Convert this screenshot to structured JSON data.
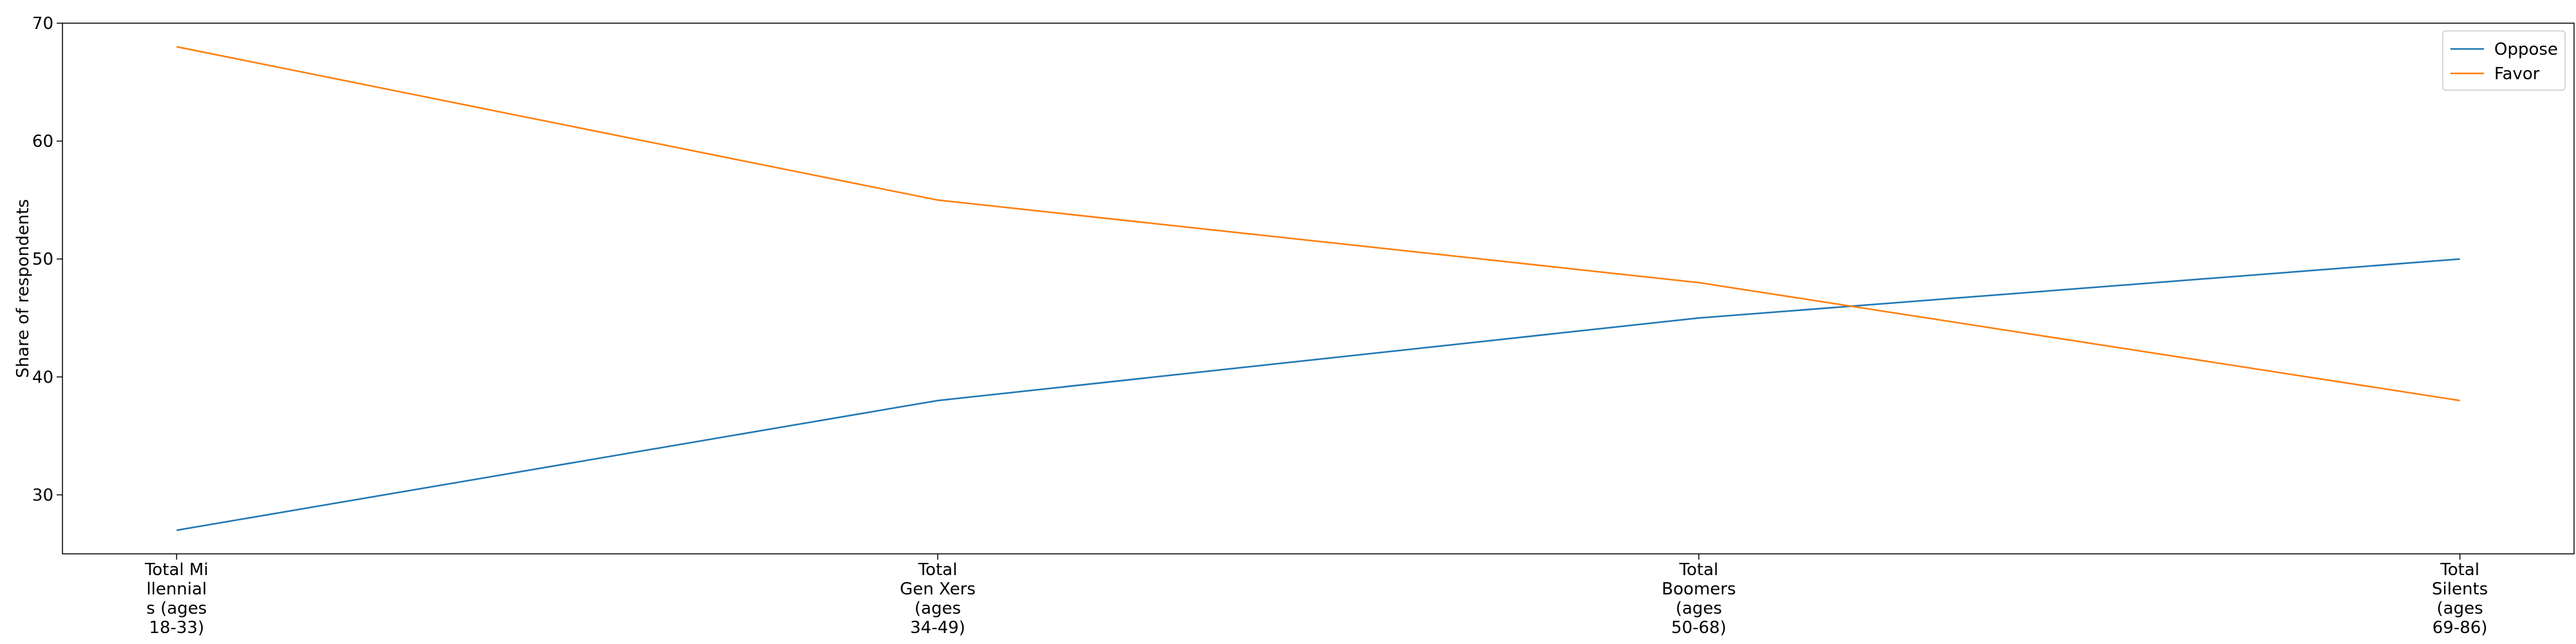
{
  "chart_data": {
    "type": "line",
    "categories": [
      "Total Millennials (ages 18-33)",
      "Total Gen Xers (ages 34-49)",
      "Total Boomers (ages 50-68)",
      "Total Silents (ages 69-86)"
    ],
    "category_label_lines": [
      [
        "Total Mi",
        "llennial",
        "s (ages",
        "18-33)"
      ],
      [
        "Total",
        "Gen Xers",
        "(ages",
        "34-49)"
      ],
      [
        "Total",
        "Boomers",
        "(ages",
        "50-68)"
      ],
      [
        "Total",
        "Silents",
        "(ages",
        "69-86)"
      ]
    ],
    "series": [
      {
        "name": "Oppose",
        "values": [
          27,
          38,
          45,
          50
        ],
        "color": "#1f77b4"
      },
      {
        "name": "Favor",
        "values": [
          68,
          55,
          48,
          38
        ],
        "color": "#ff7f0e"
      }
    ],
    "xlabel": "",
    "ylabel": "Share of respondents",
    "ylim": [
      25,
      70
    ],
    "yticks": [
      30,
      40,
      50,
      60,
      70
    ],
    "grid": false,
    "legend_position": "top-right"
  }
}
